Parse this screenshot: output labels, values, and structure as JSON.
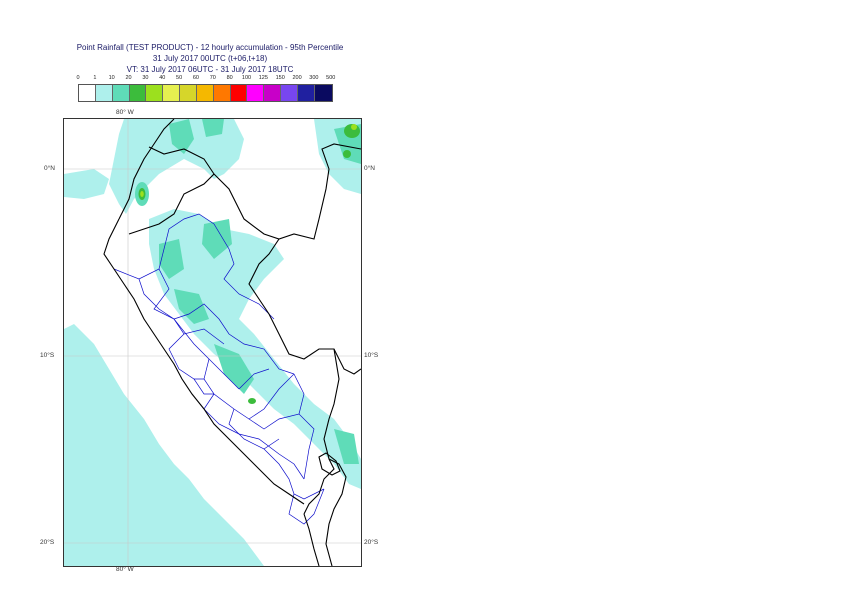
{
  "title": {
    "line1": "Point Rainfall (TEST PRODUCT) - 12 hourly accumulation - 95th Percentile",
    "line2": "31 July 2017 00UTC (t+06,t+18)",
    "line3": "VT: 31 July 2017 06UTC - 31 July 2017 18UTC"
  },
  "legend": {
    "labels": [
      "0",
      "1",
      "10",
      "20",
      "30",
      "40",
      "50",
      "60",
      "70",
      "80",
      "100",
      "125",
      "150",
      "200",
      "300",
      "500"
    ],
    "colors": [
      "#ffffff",
      "#aef0ec",
      "#5fdcb8",
      "#3cbc3c",
      "#9ce01e",
      "#e6f050",
      "#d6d62a",
      "#f5b800",
      "#ff7800",
      "#ff0000",
      "#ff00ff",
      "#c800c8",
      "#7846f0",
      "#2020a0",
      "#0a0a60"
    ]
  },
  "axes": {
    "lon_top": "80° W",
    "lon_bottom": "80° W",
    "lat": [
      "0°N",
      "10°S",
      "20°S"
    ]
  }
}
